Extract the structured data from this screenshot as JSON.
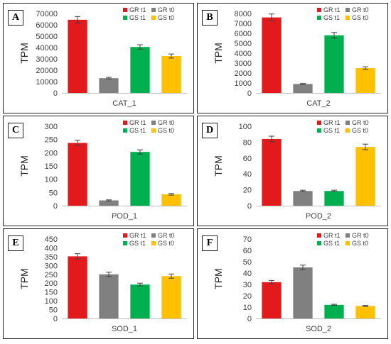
{
  "legend": [
    "GR t1",
    "GR t0",
    "GS t1",
    "GS t0"
  ],
  "colors": [
    "#e31a1c",
    "#808080",
    "#00b050",
    "#ffc000"
  ],
  "chart_data": [
    {
      "panel": "A",
      "type": "bar",
      "categories": [
        "GR t1",
        "GR t0",
        "GS t1",
        "GS t0"
      ],
      "values": [
        64500,
        13000,
        40500,
        32500
      ],
      "errors": [
        2800,
        700,
        2000,
        1800
      ],
      "ylabel": "TPM",
      "xlabel": "CAT_1",
      "ylim": [
        0,
        70000
      ],
      "ticks": [
        0,
        10000,
        20000,
        30000,
        40000,
        50000,
        60000,
        70000
      ]
    },
    {
      "panel": "B",
      "type": "bar",
      "categories": [
        "GR t1",
        "GR t0",
        "GS t1",
        "GS t0"
      ],
      "values": [
        7600,
        900,
        5800,
        2500
      ],
      "errors": [
        350,
        50,
        280,
        130
      ],
      "ylabel": "TPM",
      "xlabel": "CAT_2",
      "ylim": [
        0,
        8000
      ],
      "ticks": [
        0,
        1000,
        2000,
        3000,
        4000,
        5000,
        6000,
        7000,
        8000
      ]
    },
    {
      "panel": "C",
      "type": "bar",
      "categories": [
        "GR t1",
        "GR t0",
        "GS t1",
        "GS t0"
      ],
      "values": [
        237,
        20,
        203,
        43
      ],
      "errors": [
        10,
        2,
        8,
        3
      ],
      "ylabel": "TPM",
      "xlabel": "POD_1",
      "ylim": [
        0,
        300
      ],
      "ticks": [
        0,
        50,
        100,
        150,
        200,
        250,
        300
      ]
    },
    {
      "panel": "D",
      "type": "bar",
      "categories": [
        "GR t1",
        "GR t0",
        "GS t1",
        "GS t0"
      ],
      "values": [
        84,
        18.5,
        18.5,
        74
      ],
      "errors": [
        3.5,
        1,
        1,
        3.5
      ],
      "ylabel": "TPM",
      "xlabel": "POD_2",
      "ylim": [
        0,
        100
      ],
      "ticks": [
        0,
        20,
        40,
        60,
        80,
        100
      ]
    },
    {
      "panel": "E",
      "type": "bar",
      "categories": [
        "GR t1",
        "GR t0",
        "GS t1",
        "GS t0"
      ],
      "values": [
        352,
        250,
        192,
        240
      ],
      "errors": [
        15,
        12,
        8,
        12
      ],
      "ylabel": "TPM",
      "xlabel": "SOD_1",
      "ylim": [
        0,
        450
      ],
      "ticks": [
        0,
        50,
        100,
        150,
        200,
        250,
        300,
        350,
        400,
        450
      ]
    },
    {
      "panel": "F",
      "type": "bar",
      "categories": [
        "GR t1",
        "GR t0",
        "GS t1",
        "GS t0"
      ],
      "values": [
        32,
        45,
        12,
        11
      ],
      "errors": [
        1.5,
        2,
        0.5,
        0.5
      ],
      "ylabel": "TPM",
      "xlabel": "SOD_2",
      "ylim": [
        0,
        70
      ],
      "ticks": [
        0,
        10,
        20,
        30,
        40,
        50,
        60,
        70
      ]
    }
  ]
}
